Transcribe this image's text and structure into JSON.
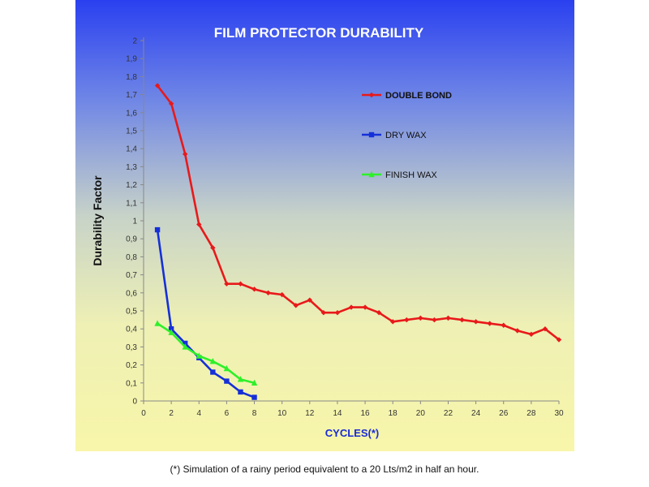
{
  "chart_data": {
    "type": "line",
    "title": "FILM PROTECTOR DURABILITY",
    "xlabel": "CYCLES(*)",
    "ylabel": "Durability Factor",
    "xlim": [
      0,
      30
    ],
    "ylim": [
      0,
      2
    ],
    "x_ticks": [
      "0",
      "2",
      "4",
      "6",
      "8",
      "10",
      "12",
      "14",
      "16",
      "18",
      "20",
      "22",
      "24",
      "26",
      "28",
      "30"
    ],
    "y_ticks": [
      "0",
      "0,1",
      "0,2",
      "0,3",
      "0,4",
      "0,5",
      "0,6",
      "0,7",
      "0,8",
      "0,9",
      "1",
      "1,1",
      "1,2",
      "1,3",
      "1,4",
      "1,5",
      "1,6",
      "1,7",
      "1,8",
      "1,9",
      "2"
    ],
    "grid": false,
    "legend_position": "right",
    "series": [
      {
        "name": "DOUBLE BOND",
        "color": "#e8191a",
        "marker": "diamond",
        "x": [
          1,
          2,
          3,
          4,
          5,
          6,
          7,
          8,
          9,
          10,
          11,
          12,
          13,
          14,
          15,
          16,
          17,
          18,
          19,
          20,
          21,
          22,
          23,
          24,
          25,
          26,
          27,
          28,
          29,
          30
        ],
        "y": [
          1.75,
          1.65,
          1.37,
          0.98,
          0.85,
          0.65,
          0.65,
          0.62,
          0.6,
          0.59,
          0.53,
          0.56,
          0.49,
          0.49,
          0.52,
          0.52,
          0.49,
          0.44,
          0.45,
          0.46,
          0.45,
          0.46,
          0.45,
          0.44,
          0.43,
          0.42,
          0.39,
          0.37,
          0.4,
          0.34
        ]
      },
      {
        "name": "DRY WAX",
        "color": "#1530d8",
        "marker": "square",
        "x": [
          1,
          2,
          3,
          4,
          5,
          6,
          7,
          8
        ],
        "y": [
          0.95,
          0.4,
          0.32,
          0.24,
          0.16,
          0.11,
          0.05,
          0.02
        ]
      },
      {
        "name": "FINISH WAX",
        "color": "#2ef02a",
        "marker": "triangle",
        "x": [
          1,
          2,
          3,
          4,
          5,
          6,
          7,
          8
        ],
        "y": [
          0.43,
          0.38,
          0.3,
          0.25,
          0.22,
          0.18,
          0.12,
          0.1
        ]
      }
    ]
  },
  "footnote": "(*) Simulation of a rainy period equivalent to a 20 Lts/m2 in half an hour."
}
